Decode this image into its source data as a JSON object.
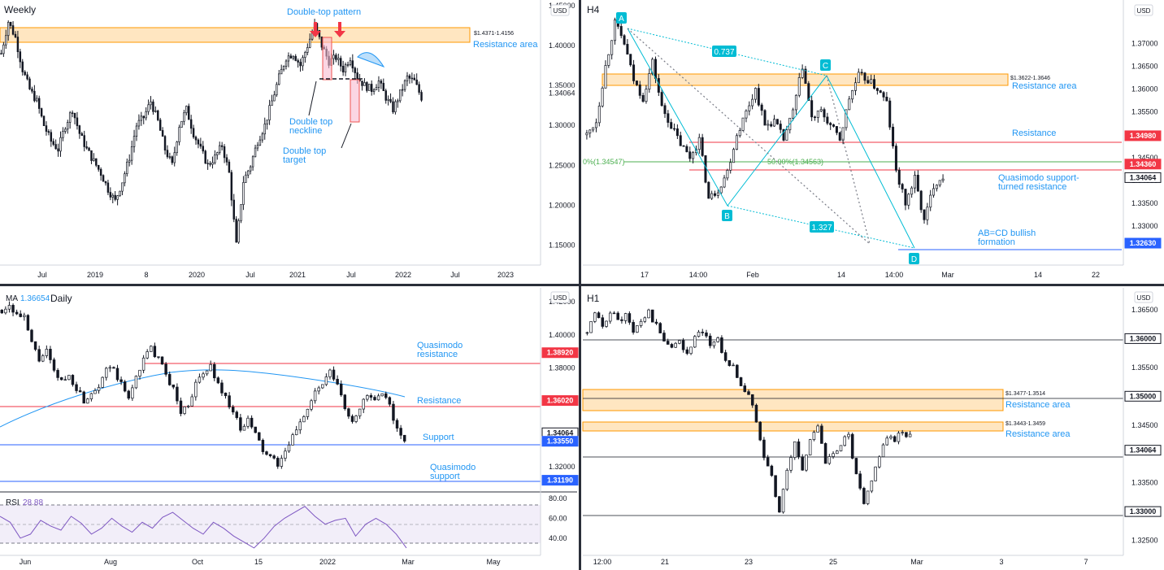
{
  "chart_data": [
    {
      "type": "candlestick",
      "title": "Weekly",
      "currency": "USD",
      "ylim": [
        1.125,
        1.457
      ],
      "y_ticks": [
        "1.45000",
        "1.40000",
        "1.35000",
        "1.30000",
        "1.25000",
        "1.20000",
        "1.15000"
      ],
      "y_tick_values": [
        1.45,
        1.4,
        1.35,
        1.3,
        1.25,
        1.2,
        1.15
      ],
      "x_ticks": [
        "Jul",
        "2019",
        "8",
        "2020",
        "Jul",
        "2021",
        "Jul",
        "2022",
        "Jul",
        "2023"
      ],
      "price_label": {
        "text": "1.34064",
        "value": 1.34064
      },
      "resistance_zone": {
        "label": "$1.4371-1.4156",
        "caption": "Resistance area",
        "high": 1.4371,
        "low": 1.4156
      },
      "annotations": [
        "Double-top pattern",
        "Double top neckline",
        "Double top target"
      ],
      "path": [
        1.39,
        1.43,
        1.41,
        1.37,
        1.345,
        1.33,
        1.3,
        1.28,
        1.27,
        1.3,
        1.32,
        1.29,
        1.27,
        1.255,
        1.24,
        1.22,
        1.205,
        1.23,
        1.26,
        1.3,
        1.31,
        1.33,
        1.305,
        1.27,
        1.25,
        1.3,
        1.32,
        1.29,
        1.27,
        1.25,
        1.26,
        1.275,
        1.24,
        1.15,
        1.23,
        1.25,
        1.28,
        1.3,
        1.33,
        1.36,
        1.385,
        1.39,
        1.375,
        1.4,
        1.425,
        1.4,
        1.38,
        1.385,
        1.37,
        1.385,
        1.36,
        1.35,
        1.345,
        1.355,
        1.335,
        1.32,
        1.34,
        1.36,
        1.355,
        1.335
      ]
    },
    {
      "type": "candlestick",
      "title": "H4",
      "currency": "USD",
      "ylim": [
        1.3215,
        1.3795
      ],
      "y_ticks": [
        "1.37000",
        "1.36500",
        "1.36000",
        "1.35500",
        "1.35000",
        "1.34500",
        "1.34000",
        "1.33500",
        "1.33000"
      ],
      "y_tick_values": [
        1.37,
        1.365,
        1.36,
        1.355,
        1.35,
        1.345,
        1.34,
        1.335,
        1.33
      ],
      "x_ticks": [
        "17",
        "14:00",
        "Feb",
        "14",
        "14:00",
        "Mar",
        "14",
        "22"
      ],
      "price_labels": [
        {
          "text": "1.34980",
          "value": 1.3498,
          "color": "#f23645"
        },
        {
          "text": "1.34360",
          "value": 1.3436,
          "color": "#f23645"
        },
        {
          "text": "1.34064",
          "value": 1.34064,
          "color": "#ffffff"
        },
        {
          "text": "1.32630",
          "value": 1.3263,
          "color": "#2962ff"
        }
      ],
      "resistance_zone": {
        "label": "$1.3622-1.3646",
        "caption": "Resistance area",
        "high": 1.3646,
        "low": 1.3622
      },
      "fib_levels": [
        "0%(1.34547)",
        "50.00%(1.34563)"
      ],
      "ratios": [
        "0.737",
        "1.327"
      ],
      "points": [
        "A",
        "B",
        "C",
        "D"
      ],
      "annotations": [
        "Resistance",
        "Quasimodo support-turned resistance",
        "AB=CD bullish formation"
      ],
      "path": [
        1.35,
        1.353,
        1.365,
        1.3745,
        1.37,
        1.362,
        1.358,
        1.366,
        1.356,
        1.352,
        1.348,
        1.345,
        1.349,
        1.336,
        1.338,
        1.342,
        1.35,
        1.355,
        1.36,
        1.352,
        1.353,
        1.349,
        1.355,
        1.365,
        1.3535,
        1.355,
        1.352,
        1.349,
        1.358,
        1.363,
        1.362,
        1.36,
        1.357,
        1.342,
        1.335,
        1.3405,
        1.331,
        1.339,
        1.341
      ]
    },
    {
      "type": "candlestick",
      "title": "Daily",
      "currency": "USD",
      "ma": {
        "label": "MA",
        "value": "1.36654"
      },
      "ylim": [
        1.3048,
        1.4285
      ],
      "y_ticks": [
        "1.42000",
        "1.40000",
        "1.38000",
        "1.36000",
        "1.34000",
        "1.32000"
      ],
      "y_tick_values": [
        1.42,
        1.4,
        1.38,
        1.36,
        1.34,
        1.32
      ],
      "x_ticks": [
        "Jun",
        "Aug",
        "Oct",
        "15",
        "2022",
        "Mar",
        "May"
      ],
      "price_labels": [
        {
          "text": "1.38920",
          "value": 1.3892,
          "color": "#f23645"
        },
        {
          "text": "1.36020",
          "value": 1.3602,
          "color": "#f23645"
        },
        {
          "text": "1.34064",
          "value": 1.34064,
          "color": "#ffffff"
        },
        {
          "text": "1.33550",
          "value": 1.3355,
          "color": "#2962ff"
        },
        {
          "text": "1.31190",
          "value": 1.3119,
          "color": "#2962ff"
        }
      ],
      "annotations": [
        "Quasimodo resistance",
        "Resistance",
        "Support",
        "Quasimodo support"
      ],
      "rsi": {
        "label": "RSI",
        "value": "28.88",
        "ylim": [
          25,
          85
        ],
        "ticks": [
          "80.00",
          "60.00",
          "40.00"
        ],
        "tick_values": [
          80,
          60,
          40
        ],
        "path": [
          62,
          56,
          40,
          44,
          58,
          52,
          48,
          62,
          55,
          44,
          50,
          60,
          52,
          46,
          56,
          50,
          61,
          66,
          58,
          50,
          44,
          56,
          50,
          42,
          36,
          30,
          40,
          52,
          60,
          66,
          72,
          62,
          54,
          58,
          60,
          42,
          54,
          60,
          54,
          44,
          30
        ]
      },
      "path": [
        1.415,
        1.418,
        1.412,
        1.41,
        1.395,
        1.385,
        1.39,
        1.377,
        1.372,
        1.375,
        1.368,
        1.36,
        1.365,
        1.37,
        1.38,
        1.378,
        1.37,
        1.361,
        1.375,
        1.385,
        1.392,
        1.385,
        1.376,
        1.367,
        1.353,
        1.358,
        1.37,
        1.376,
        1.381,
        1.37,
        1.362,
        1.354,
        1.342,
        1.348,
        1.34,
        1.33,
        1.325,
        1.322,
        1.328,
        1.338,
        1.348,
        1.355,
        1.365,
        1.37,
        1.377,
        1.37,
        1.355,
        1.348,
        1.356,
        1.363,
        1.36,
        1.363,
        1.358,
        1.342,
        1.336
      ]
    },
    {
      "type": "candlestick",
      "title": "H1",
      "currency": "USD",
      "ylim": [
        1.3224,
        1.3688
      ],
      "y_ticks": [
        "1.36500",
        "1.35500",
        "1.34500",
        "1.33500",
        "1.32500"
      ],
      "y_tick_values": [
        1.365,
        1.355,
        1.345,
        1.335,
        1.325
      ],
      "x_ticks": [
        "12:00",
        "21",
        "23",
        "25",
        "Mar",
        "3",
        "7"
      ],
      "price_labels": [
        {
          "text": "1.36000",
          "value": 1.36,
          "color": "#ffffff"
        },
        {
          "text": "1.35000",
          "value": 1.35,
          "color": "#ffffff"
        },
        {
          "text": "1.34064",
          "value": 1.34064,
          "color": "#ffffff"
        },
        {
          "text": "1.33000",
          "value": 1.33,
          "color": "#ffffff"
        }
      ],
      "resistance_zones": [
        {
          "label": "$1.3477-1.3514",
          "caption": "Resistance area",
          "high": 1.3514,
          "low": 1.3477
        },
        {
          "label": "$1.3443-1.3459",
          "caption": "Resistance area",
          "high": 1.3459,
          "low": 1.3443
        }
      ],
      "path": [
        1.361,
        1.364,
        1.362,
        1.365,
        1.363,
        1.364,
        1.361,
        1.363,
        1.3645,
        1.362,
        1.36,
        1.358,
        1.36,
        1.357,
        1.36,
        1.361,
        1.359,
        1.36,
        1.356,
        1.355,
        1.352,
        1.35,
        1.346,
        1.34,
        1.336,
        1.33,
        1.337,
        1.342,
        1.337,
        1.343,
        1.345,
        1.338,
        1.34,
        1.342,
        1.343,
        1.336,
        1.331,
        1.335,
        1.34,
        1.343,
        1.342,
        1.344,
        1.343
      ]
    }
  ]
}
